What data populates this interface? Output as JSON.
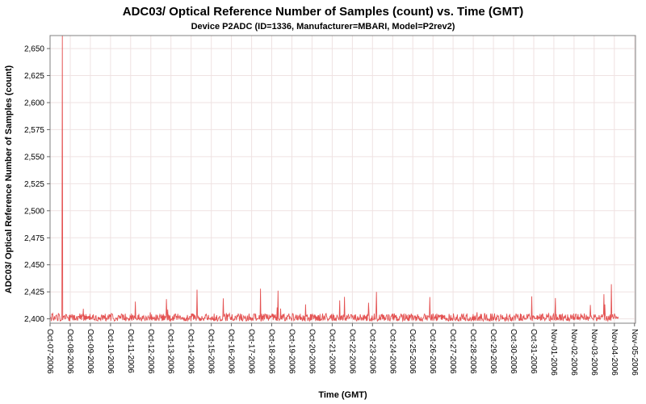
{
  "chart_data": {
    "type": "line",
    "title": "ADC03/ Optical Reference Number of Samples (count) vs. Time (GMT)",
    "subtitle": "Device P2ADC (ID=1336, Manufacturer=MBARI, Model=P2rev2)",
    "xlabel": "Time (GMT)",
    "ylabel": "ADC03/ Optical Reference Number of Samples (count)",
    "legend": "none",
    "grid": "on",
    "series_color": "#e45252",
    "grid_color": "#efe2e2",
    "axis_color": "#808080",
    "tick_color": "#666666",
    "text_color": "#000000",
    "x_tick_labels": [
      "Oct-07-2006",
      "Oct-08-2006",
      "Oct-09-2006",
      "Oct-10-2006",
      "Oct-11-2006",
      "Oct-12-2006",
      "Oct-13-2006",
      "Oct-14-2006",
      "Oct-15-2006",
      "Oct-16-2006",
      "Oct-17-2006",
      "Oct-18-2006",
      "Oct-19-2006",
      "Oct-20-2006",
      "Oct-21-2006",
      "Oct-22-2006",
      "Oct-23-2006",
      "Oct-24-2006",
      "Oct-25-2006",
      "Oct-26-2006",
      "Oct-27-2006",
      "Oct-28-2006",
      "Oct-29-2006",
      "Oct-30-2006",
      "Oct-31-2006",
      "Nov-01-2006",
      "Nov-02-2006",
      "Nov-03-2006",
      "Nov-04-2006",
      "Nov-05-2006"
    ],
    "x_domain_days": [
      0,
      29.05
    ],
    "y_domain": [
      2396,
      2662
    ],
    "y_ticks": [
      2400,
      2425,
      2450,
      2475,
      2500,
      2525,
      2550,
      2575,
      2600,
      2625,
      2650
    ],
    "baseline": 2400,
    "data_end_day": 28.2,
    "noise": {
      "seed": 1336,
      "points": 1300,
      "band_low": 2398,
      "band_high": 2405,
      "minor_spike_prob": 0.035,
      "minor_spike_max": 2428
    },
    "spikes": [
      {
        "day": 0.6,
        "value": 2662
      },
      {
        "day": 7.3,
        "value": 2427
      },
      {
        "day": 10.45,
        "value": 2428
      },
      {
        "day": 11.3,
        "value": 2426
      },
      {
        "day": 16.2,
        "value": 2425
      },
      {
        "day": 27.85,
        "value": 2432
      }
    ]
  }
}
